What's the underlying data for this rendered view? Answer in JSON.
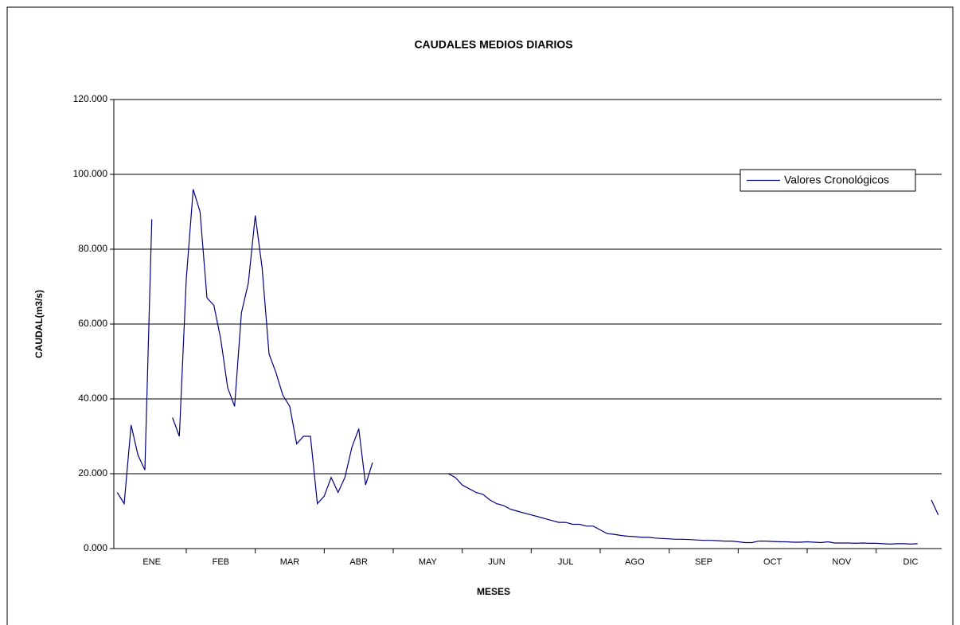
{
  "chart_data": {
    "type": "line",
    "title": "CAUDALES MEDIOS DIARIOS",
    "xlabel": "MESES",
    "ylabel": "CAUDAL(m3/s)",
    "categories": [
      null,
      null,
      null,
      null,
      null,
      "ENE",
      null,
      null,
      null,
      null,
      null,
      null,
      null,
      null,
      null,
      "FEB",
      null,
      null,
      null,
      null,
      null,
      null,
      null,
      null,
      null,
      "MAR",
      null,
      null,
      null,
      null,
      null,
      null,
      null,
      null,
      null,
      "ABR",
      null,
      null,
      null,
      null,
      null,
      null,
      null,
      null,
      null,
      "MAY",
      null,
      null,
      null,
      null,
      null,
      null,
      null,
      null,
      null,
      "JUN",
      null,
      null,
      null,
      null,
      null,
      null,
      null,
      null,
      null,
      "JUL",
      null,
      null,
      null,
      null,
      null,
      null,
      null,
      null,
      null,
      "AGO",
      null,
      null,
      null,
      null,
      null,
      null,
      null,
      null,
      null,
      "SEP",
      null,
      null,
      null,
      null,
      null,
      null,
      null,
      null,
      null,
      "OCT",
      null,
      null,
      null,
      null,
      null,
      null,
      null,
      null,
      null,
      "NOV",
      null,
      null,
      null,
      null,
      null,
      null,
      null,
      null,
      null,
      "DIC",
      null,
      null,
      null,
      null
    ],
    "series": [
      {
        "name": "Valores Cronológicos",
        "color": "#000080",
        "values": [
          15,
          12,
          33,
          25,
          21,
          88,
          null,
          null,
          35,
          30,
          72,
          96,
          90,
          67,
          65,
          56,
          43,
          38,
          63,
          71,
          89,
          75,
          52,
          47,
          41,
          38,
          28,
          30,
          30,
          12,
          14,
          19,
          15,
          19,
          27,
          32,
          17,
          23,
          null,
          null,
          null,
          null,
          null,
          null,
          null,
          null,
          null,
          null,
          20,
          19,
          17,
          16,
          15,
          14.5,
          13,
          12,
          11.5,
          10.5,
          10,
          9.5,
          9,
          8.5,
          8,
          7.5,
          7,
          7,
          6.5,
          6.5,
          6,
          6,
          5,
          4,
          3.8,
          3.5,
          3.3,
          3.2,
          3,
          3,
          2.8,
          2.7,
          2.6,
          2.5,
          2.5,
          2.4,
          2.3,
          2.2,
          2.2,
          2.1,
          2,
          2,
          1.8,
          1.6,
          1.6,
          2,
          2,
          1.9,
          1.8,
          1.8,
          1.7,
          1.7,
          1.8,
          1.7,
          1.6,
          1.8,
          1.5,
          1.5,
          1.5,
          1.4,
          1.5,
          1.4,
          1.4,
          1.3,
          1.2,
          1.3,
          1.3,
          1.2,
          1.3,
          null,
          13,
          9
        ]
      }
    ],
    "ylim": [
      0,
      120
    ],
    "yticks": [
      {
        "value": 0,
        "label": "0.000"
      },
      {
        "value": 20,
        "label": "20.000"
      },
      {
        "value": 40,
        "label": "40.000"
      },
      {
        "value": 60,
        "label": "60.000"
      },
      {
        "value": 80,
        "label": "80.000"
      },
      {
        "value": 100,
        "label": "100.000"
      },
      {
        "value": 120,
        "label": "120.000"
      }
    ],
    "grid": true,
    "legend": "upper right"
  }
}
